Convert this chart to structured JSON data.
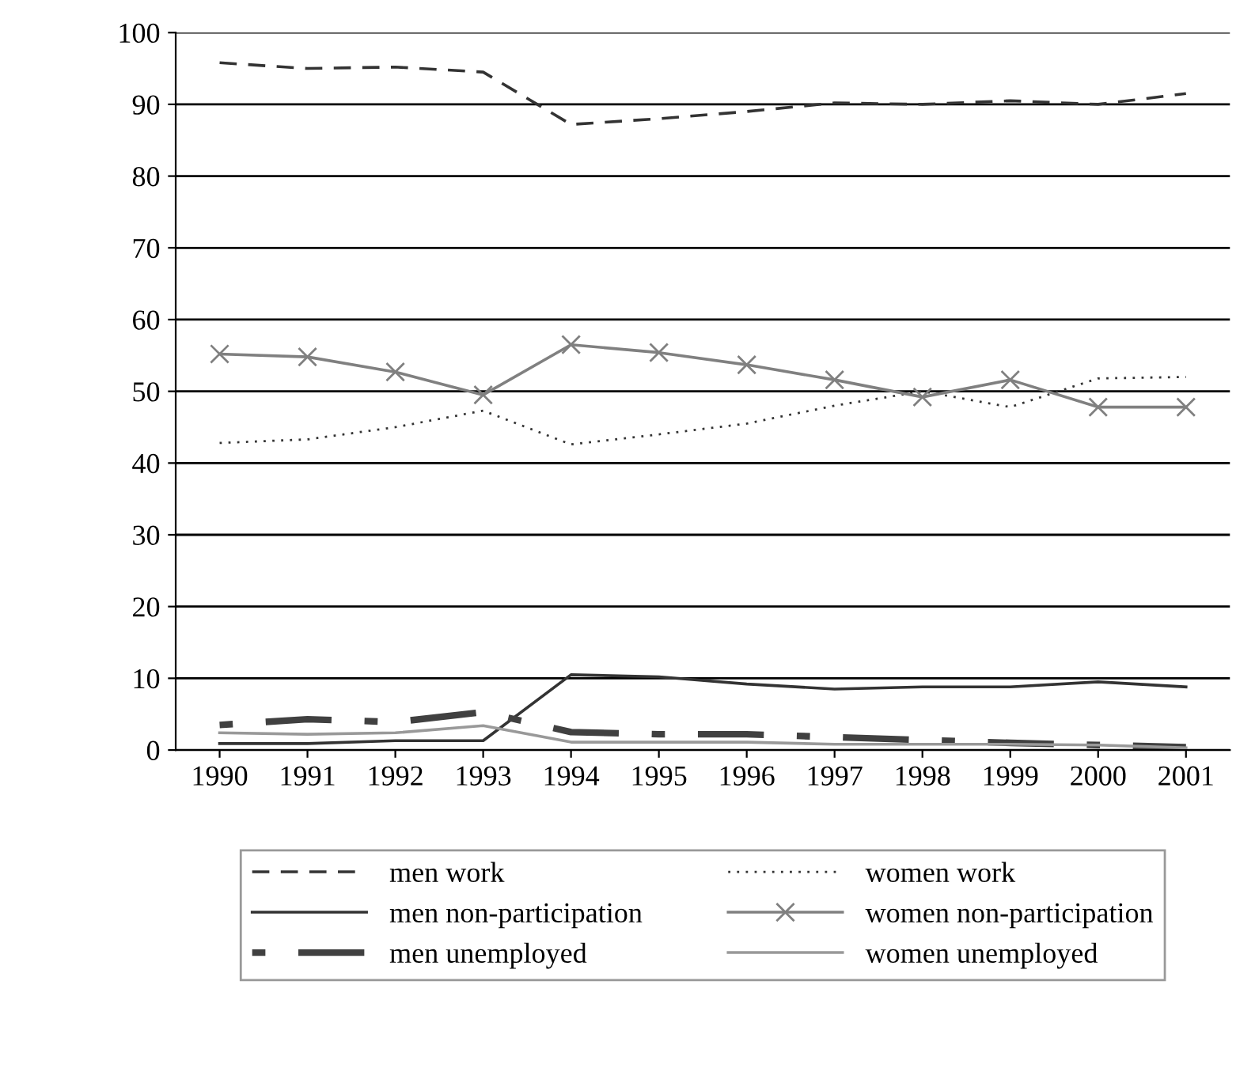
{
  "chart_data": {
    "type": "line",
    "categories": [
      "1990",
      "1991",
      "1992",
      "1993",
      "1994",
      "1995",
      "1996",
      "1997",
      "1998",
      "1999",
      "2000",
      "2001"
    ],
    "ylim": [
      0,
      100
    ],
    "yticks": [
      0,
      10,
      20,
      30,
      40,
      50,
      60,
      70,
      80,
      90,
      100
    ],
    "grid": "y",
    "legend": "bottom",
    "series": [
      {
        "name": "men work",
        "color": "#333333",
        "line_style": "dashed",
        "values": [
          95.8,
          95.0,
          95.2,
          94.5,
          87.2,
          88.0,
          89.0,
          90.2,
          90.0,
          90.5,
          90.0,
          91.5
        ]
      },
      {
        "name": "men non-participation",
        "color": "#333333",
        "line_style": "solid",
        "values": [
          0.9,
          0.9,
          1.3,
          1.3,
          10.5,
          10.2,
          9.2,
          8.5,
          8.8,
          8.8,
          9.5,
          8.8
        ]
      },
      {
        "name": "men unemployed",
        "color": "#404040",
        "line_style": "dashdot",
        "values": [
          3.5,
          4.3,
          3.9,
          5.3,
          2.5,
          2.2,
          2.2,
          1.8,
          1.4,
          1.0,
          0.7,
          0.4
        ]
      },
      {
        "name": "women work",
        "color": "#333333",
        "line_style": "dotted",
        "values": [
          42.8,
          43.3,
          45.0,
          47.3,
          42.6,
          44.0,
          45.5,
          48.0,
          50.0,
          47.8,
          51.8,
          52.0
        ]
      },
      {
        "name": "women non-participation",
        "color": "#808080",
        "line_style": "solid",
        "marker": "cross",
        "values": [
          55.2,
          54.8,
          52.7,
          49.5,
          56.5,
          55.4,
          53.7,
          51.6,
          49.2,
          51.6,
          47.8,
          47.8
        ]
      },
      {
        "name": "women unemployed",
        "color": "#999999",
        "line_style": "solid",
        "values": [
          2.4,
          2.2,
          2.4,
          3.4,
          1.1,
          1.1,
          1.1,
          0.8,
          0.8,
          0.8,
          0.7,
          0.3
        ]
      }
    ]
  }
}
